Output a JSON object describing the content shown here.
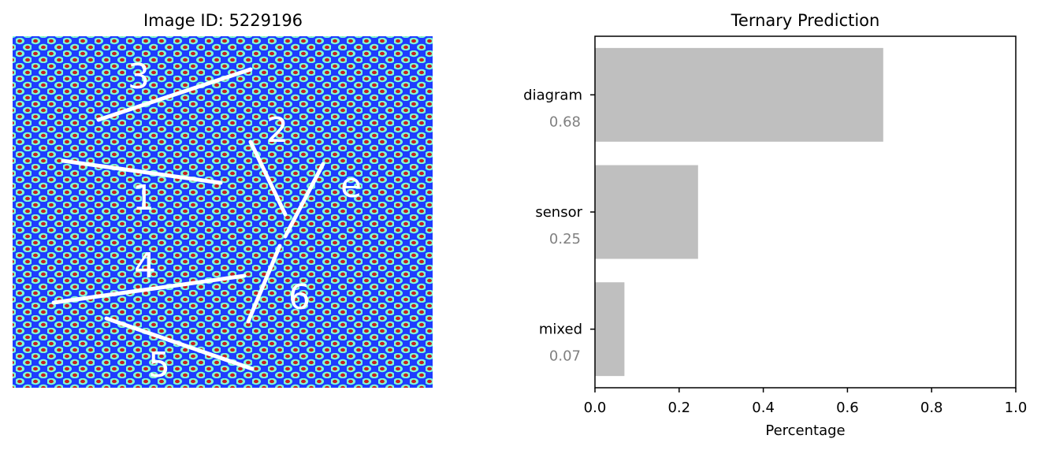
{
  "left_panel": {
    "title": "Image ID: 5229196",
    "annotations": [
      {
        "label": "3"
      },
      {
        "label": "2"
      },
      {
        "label": "e"
      },
      {
        "label": "1"
      },
      {
        "label": "4"
      },
      {
        "label": "6"
      },
      {
        "label": "5"
      }
    ],
    "colors": {
      "background": "#1e3cff",
      "dot_ring": "#7fffd4",
      "dot_core": "#c81e1e",
      "line": "#ffffff"
    }
  },
  "chart_data": {
    "type": "bar",
    "orientation": "horizontal",
    "title": "Ternary Prediction",
    "xlabel": "Percentage",
    "ylabel": "",
    "xlim": [
      0,
      1
    ],
    "xticks": [
      "0.0",
      "0.2",
      "0.4",
      "0.6",
      "0.8",
      "1.0"
    ],
    "categories": [
      "diagram",
      "sensor",
      "mixed"
    ],
    "values": [
      0.685,
      0.245,
      0.07
    ],
    "value_labels": [
      "0.68",
      "0.25",
      "0.07"
    ],
    "bar_color": "#bfbfbf",
    "value_label_color": "#808080",
    "grid": false,
    "legend": false
  }
}
